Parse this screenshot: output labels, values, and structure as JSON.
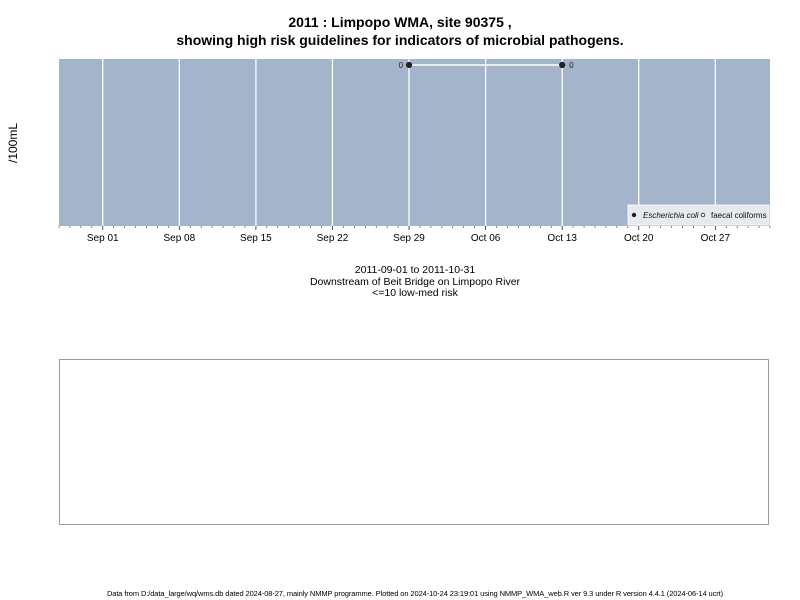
{
  "header": {
    "title_line1": "2011 : Limpopo WMA, site 90375 ,",
    "title_line2": "showing high risk guidelines for indicators of microbial pathogens."
  },
  "chart_data": {
    "type": "line",
    "ylabel": "/100mL",
    "x_range": [
      "2011-08-28",
      "2011-11-01"
    ],
    "x_ticks": [
      {
        "date": "2011-09-01",
        "label": "Sep 01"
      },
      {
        "date": "2011-09-08",
        "label": "Sep 08"
      },
      {
        "date": "2011-09-15",
        "label": "Sep 15"
      },
      {
        "date": "2011-09-22",
        "label": "Sep 22"
      },
      {
        "date": "2011-09-29",
        "label": "Sep 29"
      },
      {
        "date": "2011-10-06",
        "label": "Oct 06"
      },
      {
        "date": "2011-10-13",
        "label": "Oct 13"
      },
      {
        "date": "2011-10-20",
        "label": "Oct 20"
      },
      {
        "date": "2011-10-27",
        "label": "Oct 27"
      }
    ],
    "series": [
      {
        "name": "Escherichia coli",
        "marker": "filled",
        "points": [
          {
            "date": "2011-09-29",
            "value": 0,
            "label": "0"
          },
          {
            "date": "2011-10-13",
            "value": 0,
            "label": "0"
          }
        ]
      },
      {
        "name": "faecal coliforms",
        "marker": "open",
        "points": []
      }
    ],
    "legend": {
      "position": "bottom-right",
      "series_names": [
        "Escherichia coli",
        "faecal coliforms"
      ]
    },
    "colors": {
      "panel": "#a3b4cb",
      "grid": "#ffffff",
      "line": "#ffffff",
      "marker": "#222222"
    }
  },
  "subtitle": {
    "line1": "2011-09-01 to 2011-10-31",
    "line2": "Downstream of Beit Bridge on Limpopo River",
    "line3": "<=10 low-med risk"
  },
  "footer": {
    "text": "Data from D:/data_large/wq/wms.db dated 2024-08-27, mainly NMMP programme. Plotted on 2024-10-24 23:19:01 using NMMP_WMA_web.R ver 9.3 under R version 4.4.1 (2024-06-14 ucrt)"
  }
}
